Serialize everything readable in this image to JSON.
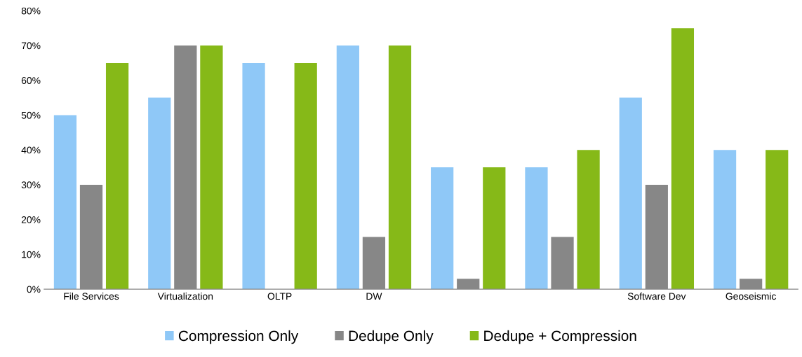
{
  "chart_data": {
    "type": "bar",
    "categories": [
      "File Services",
      "Virtualization",
      "OLTP",
      "DW",
      null,
      null,
      "Software Dev",
      "Geoseismic"
    ],
    "series": [
      {
        "name": "Compression Only",
        "color": "#8fc8f7",
        "values": [
          50,
          55,
          65,
          70,
          35,
          35,
          55,
          40
        ]
      },
      {
        "name": "Dedupe Only",
        "color": "#878787",
        "values": [
          30,
          70,
          null,
          15,
          3,
          15,
          30,
          3
        ]
      },
      {
        "name": "Dedupe + Compression",
        "color": "#86b918",
        "values": [
          65,
          70,
          65,
          70,
          35,
          40,
          75,
          40
        ]
      }
    ],
    "ylim": [
      0,
      80
    ],
    "yticks": [
      {
        "value": 0,
        "label": "0%"
      },
      {
        "value": 10,
        "label": "10%"
      },
      {
        "value": 20,
        "label": "20%"
      },
      {
        "value": 30,
        "label": "30%"
      },
      {
        "value": 40,
        "label": "40%"
      },
      {
        "value": 50,
        "label": "50%"
      },
      {
        "value": 60,
        "label": "60%"
      },
      {
        "value": 70,
        "label": "70%"
      },
      {
        "value": 80,
        "label": "80%"
      }
    ],
    "grid": false,
    "legend": "bottom"
  }
}
